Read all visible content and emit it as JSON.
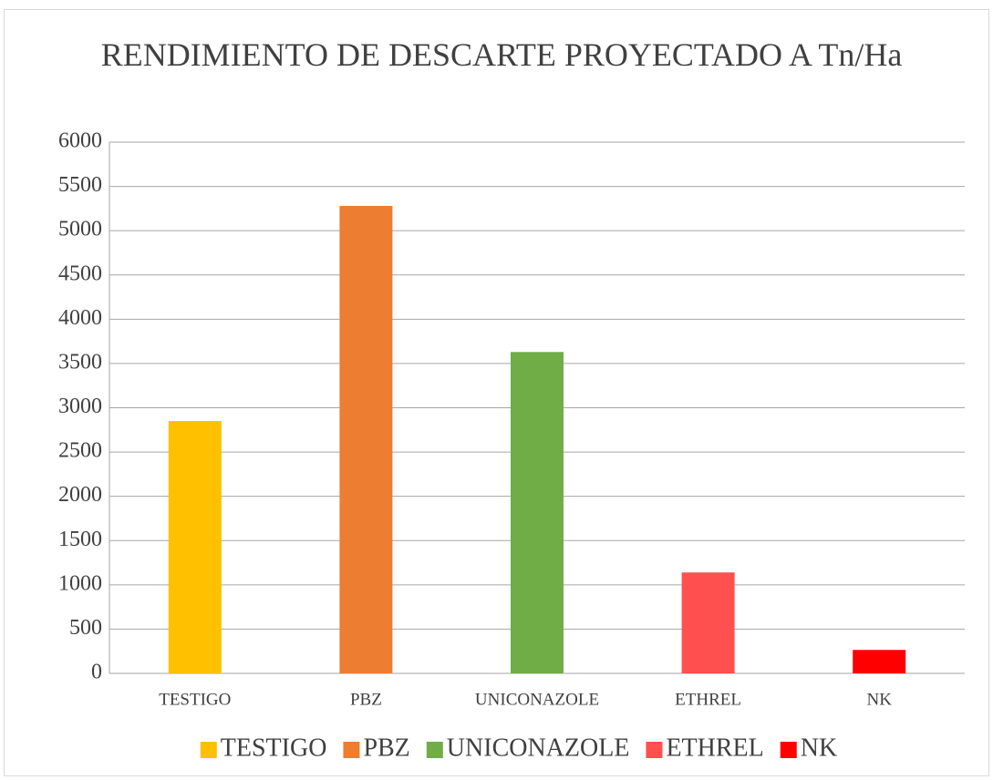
{
  "chart_data": {
    "type": "bar",
    "title": "RENDIMIENTO DE DESCARTE PROYECTADO A Tn/Ha",
    "categories": [
      "TESTIGO",
      "PBZ",
      "UNICONAZOLE",
      "ETHREL",
      "NK"
    ],
    "values": [
      2850,
      5280,
      3630,
      1140,
      265
    ],
    "colors": [
      "#ffc000",
      "#ed7d31",
      "#70ad47",
      "#ff5050",
      "#ff0000"
    ],
    "ylim": [
      0,
      6000
    ],
    "yticks": [
      0,
      500,
      1000,
      1500,
      2000,
      2500,
      3000,
      3500,
      4000,
      4500,
      5000,
      5500,
      6000
    ],
    "grid": true,
    "legend": "bottom"
  }
}
